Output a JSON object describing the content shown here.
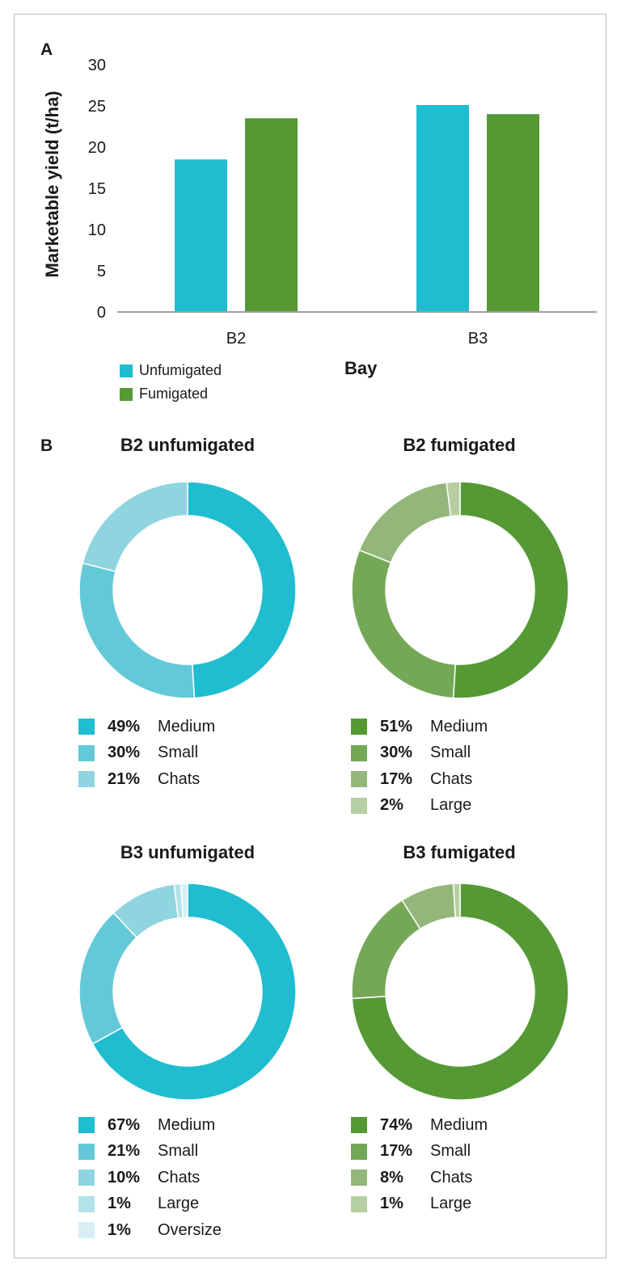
{
  "panels": {
    "a": "A",
    "b": "B"
  },
  "chart_data": [
    {
      "type": "bar",
      "title": "",
      "xlabel": "Bay",
      "ylabel": "Marketable yield (t/ha)",
      "categories": [
        "B2",
        "B3"
      ],
      "ylim": [
        0,
        30
      ],
      "yticks": [
        0,
        5,
        10,
        15,
        20,
        25,
        30
      ],
      "series": [
        {
          "name": "Unfumigated",
          "color": "#20bdd0",
          "values": [
            18.5,
            25.1
          ]
        },
        {
          "name": "Fumigated",
          "color": "#559935",
          "values": [
            23.5,
            24.0
          ]
        }
      ],
      "legend_position": "bottom-left"
    },
    {
      "type": "pie",
      "title": "B2 unfumigated",
      "slices": [
        {
          "label": "Medium",
          "pct_label": "49%",
          "value": 49,
          "color": "#20bdd0"
        },
        {
          "label": "Small",
          "pct_label": "30%",
          "value": 30,
          "color": "#63c9d8"
        },
        {
          "label": "Chats",
          "pct_label": "21%",
          "value": 21,
          "color": "#8fd5df"
        }
      ]
    },
    {
      "type": "pie",
      "title": "B2 fumigated",
      "slices": [
        {
          "label": "Medium",
          "pct_label": "51%",
          "value": 51,
          "color": "#559935"
        },
        {
          "label": "Small",
          "pct_label": "30%",
          "value": 30,
          "color": "#74a857"
        },
        {
          "label": "Chats",
          "pct_label": "17%",
          "value": 17,
          "color": "#93b77a"
        },
        {
          "label": "Large",
          "pct_label": "2%",
          "value": 2,
          "color": "#b6cfa2"
        }
      ]
    },
    {
      "type": "pie",
      "title": "B3 unfumigated",
      "slices": [
        {
          "label": "Medium",
          "pct_label": "67%",
          "value": 67,
          "color": "#20bdd0"
        },
        {
          "label": "Small",
          "pct_label": "21%",
          "value": 21,
          "color": "#63c9d8"
        },
        {
          "label": "Chats",
          "pct_label": "10%",
          "value": 10,
          "color": "#8fd5df"
        },
        {
          "label": "Large",
          "pct_label": "1%",
          "value": 1,
          "color": "#b3e2e9"
        },
        {
          "label": "Oversize",
          "pct_label": "1%",
          "value": 1,
          "color": "#d6f0f4"
        }
      ]
    },
    {
      "type": "pie",
      "title": "B3 fumigated",
      "slices": [
        {
          "label": "Medium",
          "pct_label": "74%",
          "value": 74,
          "color": "#559935"
        },
        {
          "label": "Small",
          "pct_label": "17%",
          "value": 17,
          "color": "#74a857"
        },
        {
          "label": "Chats",
          "pct_label": "8%",
          "value": 8,
          "color": "#93b77a"
        },
        {
          "label": "Large",
          "pct_label": "1%",
          "value": 1,
          "color": "#b6cfa2"
        }
      ]
    }
  ]
}
